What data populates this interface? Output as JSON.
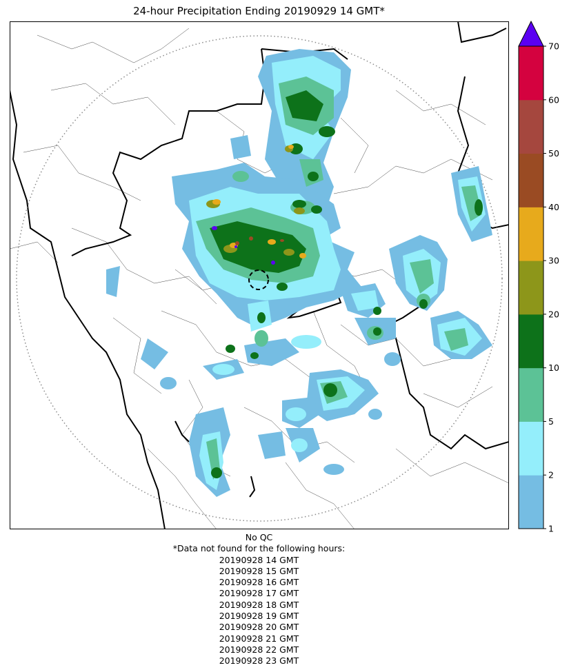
{
  "title": "24-hour Precipitation Ending 20190929 14 GMT*",
  "colorbar": {
    "ticks": [
      "1",
      "2",
      "5",
      "10",
      "20",
      "30",
      "40",
      "50",
      "60",
      "70"
    ],
    "colors": [
      "#75bde3",
      "#94eefb",
      "#5cc296",
      "#0d721a",
      "#8d961a",
      "#e7aa1c",
      "#9a4b23",
      "#a5473e",
      "#d4023f"
    ],
    "extend_color": "#5b00f2"
  },
  "footer": {
    "qc_note": "No QC",
    "missing_note": "*Data not found for the following hours:",
    "missing_hours": [
      "20190928 14 GMT",
      "20190928 15 GMT",
      "20190928 16 GMT",
      "20190928 17 GMT",
      "20190928 18 GMT",
      "20190928 19 GMT",
      "20190928 20 GMT",
      "20190928 21 GMT",
      "20190928 22 GMT",
      "20190928 23 GMT"
    ]
  }
}
